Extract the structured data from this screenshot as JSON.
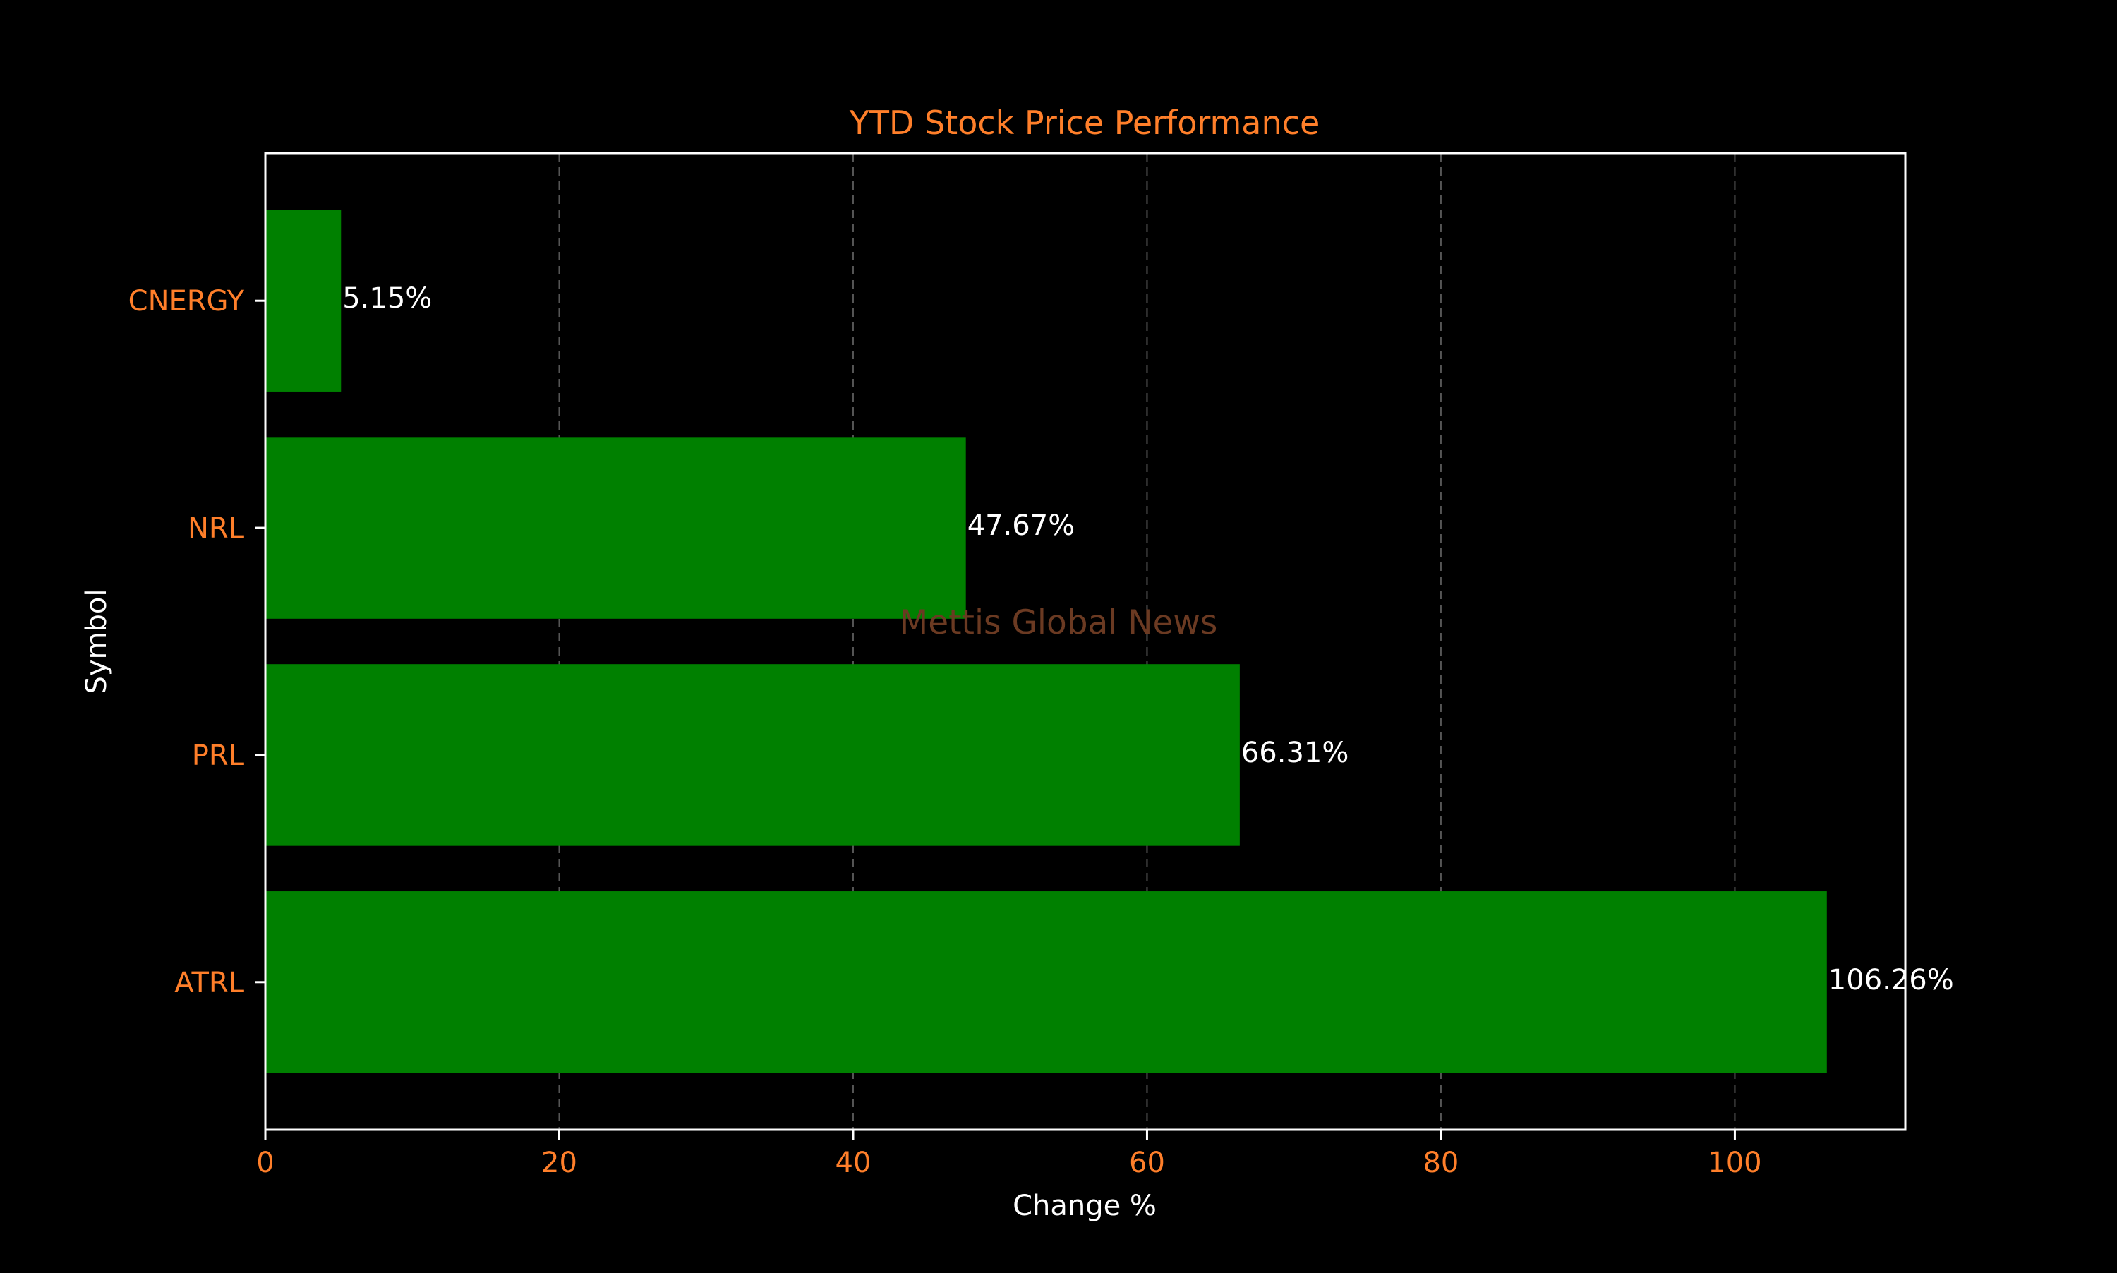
{
  "chart_data": {
    "type": "bar",
    "orientation": "horizontal",
    "title": "YTD Stock Price Performance",
    "xlabel": "Change %",
    "ylabel": "Symbol",
    "categories": [
      "ATRL",
      "PRL",
      "NRL",
      "CNERGY"
    ],
    "values": [
      106.26,
      66.31,
      47.67,
      5.15
    ],
    "data_labels": [
      "106.26%",
      "66.31%",
      "47.67%",
      "5.15%"
    ],
    "xlim": [
      0,
      111.6
    ],
    "xticks": [
      0,
      20,
      40,
      60,
      80,
      100
    ],
    "xtick_labels": [
      "0",
      "20",
      "40",
      "60",
      "80",
      "100"
    ],
    "grid": "vertical dashed",
    "watermark": "Mettis Global News",
    "colors": {
      "background": "#000000",
      "bar": "#008000",
      "accent": "#ff7f2a",
      "text": "#ffffff",
      "watermark": "#6b3a22",
      "grid": "#555555",
      "spine": "#ffffff"
    }
  }
}
